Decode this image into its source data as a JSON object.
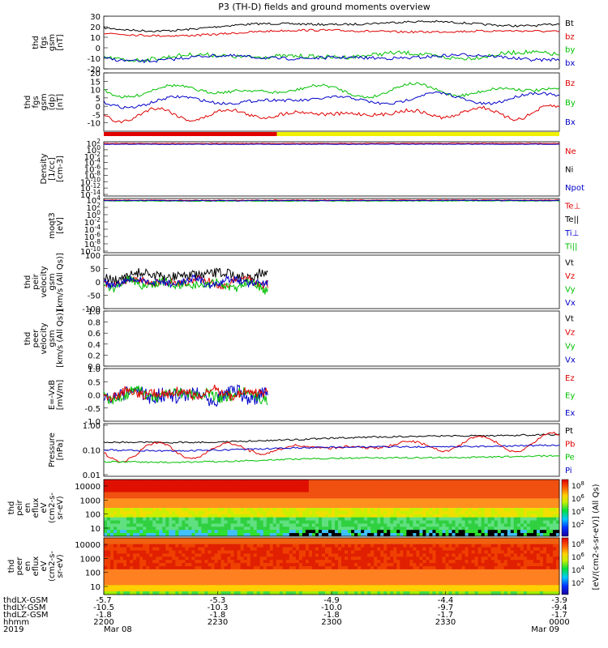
{
  "title": "P3 (TH-D) fields and ground moments overview",
  "colors": {
    "black": "#000000",
    "red": "#e00000",
    "green": "#00c000",
    "blue": "#0000c8",
    "yellow": "#f0f000"
  },
  "footer": {
    "row_labels": [
      "thdLX-GSM",
      "thdLY-GSM",
      "thdLZ-GSM",
      "hhmm",
      "2019"
    ],
    "columns": [
      {
        "x": "-5.7",
        "y": "-10.5",
        "z": "-1.8",
        "time": "2200",
        "date": "Mar 08"
      },
      {
        "x": "-5.3",
        "y": "-10.3",
        "z": "-1.8",
        "time": "2230",
        "date": ""
      },
      {
        "x": "-4.9",
        "y": "-10.0",
        "z": "-1.8",
        "time": "2300",
        "date": ""
      },
      {
        "x": "-4.4",
        "y": "-9.7",
        "z": "-1.7",
        "time": "2330",
        "date": ""
      },
      {
        "x": "-3.9",
        "y": "-9.4",
        "z": "-1.7",
        "time": "0000",
        "date": "Mar 09"
      }
    ]
  },
  "colorbar": {
    "label": "[eV/(cm2-s-sr-eV)] (All Qs)",
    "top_ticks": [
      "10^8",
      "10^6",
      "10^4",
      "10^2"
    ],
    "bottom_ticks": [
      "10^8",
      "10^6",
      "10^4",
      "10^2"
    ]
  },
  "chart_data": [
    {
      "type": "line",
      "ylabel": [
        "thd",
        "fgs",
        "gsm",
        "[nT]"
      ],
      "ylim": [
        -20,
        30
      ],
      "ticks": [
        "30",
        "20",
        "10",
        "0",
        "-10",
        "-20"
      ],
      "ytickvals": [
        30,
        20,
        10,
        0,
        -10,
        -20
      ],
      "series": [
        {
          "name": "Bt",
          "color": "black"
        },
        {
          "name": "bz",
          "color": "red"
        },
        {
          "name": "by",
          "color": "green"
        },
        {
          "name": "bx",
          "color": "blue"
        }
      ]
    },
    {
      "type": "line",
      "ylabel": [
        "thd",
        "fgs",
        "gsm",
        "(dp)",
        "[nT]"
      ],
      "ylim": [
        -15,
        20
      ],
      "ticks": [
        "20",
        "15",
        "10",
        "5",
        "0",
        "-5",
        "-10"
      ],
      "ytickvals": [
        20,
        15,
        10,
        5,
        0,
        -5,
        -10
      ],
      "series": [
        {
          "name": "Bz",
          "color": "red"
        },
        {
          "name": "By",
          "color": "green"
        },
        {
          "name": "Bx",
          "color": "blue"
        }
      ]
    },
    {
      "type": "line",
      "ylabel": [
        "Density",
        "[1/cc]",
        "[cm-3]"
      ],
      "log": true,
      "ticks": [
        "10^2",
        "10^0",
        "10^-2",
        "10^-4",
        "10^-6",
        "10^-8",
        "10^-10",
        "10^-12",
        "10^-14"
      ],
      "series": [
        {
          "name": "Ne",
          "color": "red"
        },
        {
          "name": "Ni",
          "color": "black"
        },
        {
          "name": "Npot",
          "color": "blue"
        }
      ]
    },
    {
      "type": "line",
      "ylabel": [
        "moqt3",
        "[eV]"
      ],
      "log": true,
      "ticks": [
        "10^4",
        "10^2",
        "10^0",
        "10^-2",
        "10^-4",
        "10^-6",
        "10^-8",
        "10^-10"
      ],
      "series": [
        {
          "name": "Te⊥",
          "color": "red"
        },
        {
          "name": "Te||",
          "color": "black"
        },
        {
          "name": "Ti⊥",
          "color": "blue"
        },
        {
          "name": "Ti||",
          "color": "green"
        }
      ]
    },
    {
      "type": "line",
      "ylabel": [
        "thd",
        "peir",
        "velocity",
        "gsm",
        "[km/s (All Qs)]"
      ],
      "ylim": [
        -100,
        100
      ],
      "ticks": [
        "100",
        "50",
        "0",
        "-50",
        "-100"
      ],
      "ytickvals": [
        100,
        50,
        0,
        -50,
        -100
      ],
      "series": [
        {
          "name": "Vt",
          "color": "black"
        },
        {
          "name": "Vz",
          "color": "red"
        },
        {
          "name": "Vy",
          "color": "green"
        },
        {
          "name": "Vx",
          "color": "blue"
        }
      ]
    },
    {
      "type": "line",
      "ylabel": [
        "thd",
        "peer",
        "velocity",
        "gsm",
        "[km/s (All Qs)]"
      ],
      "ylim": [
        0,
        1
      ],
      "ticks": [
        "1.0",
        "0.8",
        "0.6",
        "0.4",
        "0.2",
        "0.0"
      ],
      "ytickvals": [
        1,
        0.8,
        0.6,
        0.4,
        0.2,
        0
      ],
      "series": [
        {
          "name": "Vt",
          "color": "black"
        },
        {
          "name": "Vz",
          "color": "red"
        },
        {
          "name": "Vy",
          "color": "green"
        },
        {
          "name": "Vx",
          "color": "blue"
        }
      ]
    },
    {
      "type": "line",
      "ylabel": [
        "E=-VxB",
        "[mV/m]"
      ],
      "ylim": [
        -1,
        1
      ],
      "ticks": [
        "1.0",
        "0.5",
        "0.0",
        "-0.5",
        "-1.0"
      ],
      "ytickvals": [
        1,
        0.5,
        0,
        -0.5,
        -1
      ],
      "series": [
        {
          "name": "Ez",
          "color": "red"
        },
        {
          "name": "Ey",
          "color": "green"
        },
        {
          "name": "Ex",
          "color": "blue"
        }
      ]
    },
    {
      "type": "line",
      "ylabel": [
        "Pressure",
        "[nPa]"
      ],
      "log": true,
      "ylim": [
        0.01,
        1.0
      ],
      "ticks": [
        "1.00",
        "0.10",
        "0.01"
      ],
      "series": [
        {
          "name": "Pt",
          "color": "black"
        },
        {
          "name": "Pb",
          "color": "red"
        },
        {
          "name": "Pe",
          "color": "green"
        },
        {
          "name": "Pi",
          "color": "blue"
        }
      ]
    },
    {
      "type": "heatmap",
      "ylabel": [
        "thd",
        "peir",
        "en",
        "eflux",
        "eV",
        "(cm2-s-",
        "sr-eV)"
      ],
      "ticks": [
        "10000",
        "1000",
        "100",
        "10"
      ]
    },
    {
      "type": "heatmap",
      "ylabel": [
        "thd",
        "peer",
        "en",
        "eflux",
        "eV",
        "(cm2-s-",
        "sr-eV)"
      ],
      "ticks": [
        "10000",
        "1000",
        "100",
        "10"
      ]
    }
  ]
}
